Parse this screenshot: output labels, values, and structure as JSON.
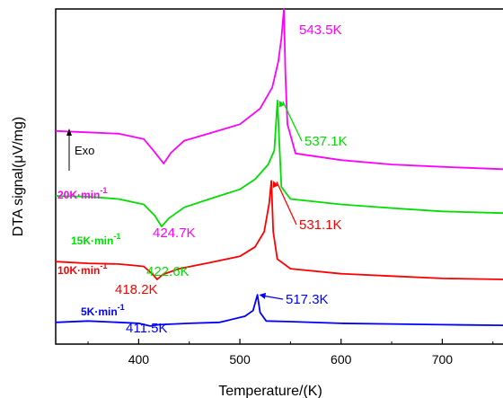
{
  "chart_data": {
    "type": "line",
    "title": "",
    "xlabel": "Temperature/(K)",
    "ylabel": "DTA signal(μV/mg)",
    "xlim": [
      318,
      760
    ],
    "ylim": [
      0,
      100
    ],
    "x_ticks": [
      400,
      500,
      600,
      700
    ],
    "x_tick_labels": [
      "400",
      "500",
      "600",
      "700"
    ],
    "y_ticks_labeled": false,
    "grid": false,
    "legend": "none (inline curve labels)",
    "exo_label": "Exo",
    "series": [
      {
        "name": "20K·min-1",
        "rate_text": "20K·min",
        "rate_exp": "-1",
        "color": "#ff00ff",
        "points": [
          [
            318,
            63.6
          ],
          [
            350,
            63.2
          ],
          [
            380,
            62.8
          ],
          [
            405,
            61.2
          ],
          [
            415,
            57.6
          ],
          [
            424.7,
            53.9
          ],
          [
            432,
            57.1
          ],
          [
            445,
            60.7
          ],
          [
            470,
            62.9
          ],
          [
            500,
            65.6
          ],
          [
            520,
            70.3
          ],
          [
            532,
            76.6
          ],
          [
            538,
            84.4
          ],
          [
            541,
            91.3
          ],
          [
            543.5,
            100.0
          ],
          [
            545,
            80.0
          ],
          [
            547,
            65.6
          ],
          [
            555,
            56.9
          ],
          [
            600,
            54.9
          ],
          [
            650,
            53.6
          ],
          [
            700,
            52.9
          ],
          [
            760,
            52.2
          ]
        ]
      },
      {
        "name": "15K·min-1",
        "rate_text": "15K·min",
        "rate_exp": "-1",
        "color": "#00dd00",
        "points": [
          [
            318,
            44.2
          ],
          [
            350,
            44.0
          ],
          [
            380,
            43.3
          ],
          [
            405,
            41.7
          ],
          [
            416,
            38.3
          ],
          [
            422.6,
            35.1
          ],
          [
            430,
            37.6
          ],
          [
            445,
            40.8
          ],
          [
            470,
            43.3
          ],
          [
            500,
            46.2
          ],
          [
            515,
            49.2
          ],
          [
            528,
            53.6
          ],
          [
            534,
            57.8
          ],
          [
            537.1,
            72.7
          ],
          [
            539,
            60.0
          ],
          [
            541,
            46.9
          ],
          [
            550,
            43.3
          ],
          [
            600,
            41.7
          ],
          [
            650,
            40.6
          ],
          [
            700,
            39.6
          ],
          [
            760,
            39.1
          ]
        ]
      },
      {
        "name": "10K·min-1",
        "rate_text": "10K·min",
        "rate_exp": "-1",
        "color": "#ff0000",
        "points": [
          [
            318,
            24.6
          ],
          [
            350,
            24.1
          ],
          [
            380,
            23.9
          ],
          [
            405,
            23.2
          ],
          [
            414,
            20.8
          ],
          [
            418.2,
            19.3
          ],
          [
            424,
            20.8
          ],
          [
            440,
            22.5
          ],
          [
            470,
            24.3
          ],
          [
            500,
            26.2
          ],
          [
            515,
            29.0
          ],
          [
            524,
            33.5
          ],
          [
            529,
            42.0
          ],
          [
            531.1,
            48.7
          ],
          [
            533,
            33.5
          ],
          [
            537,
            25.4
          ],
          [
            550,
            22.5
          ],
          [
            600,
            21.0
          ],
          [
            650,
            20.3
          ],
          [
            700,
            19.6
          ],
          [
            760,
            19.3
          ]
        ]
      },
      {
        "name": "5K·min-1",
        "rate_text": "5K·min",
        "rate_exp": "-1",
        "color": "#0000ff",
        "points": [
          [
            318,
            6.5
          ],
          [
            350,
            6.9
          ],
          [
            380,
            6.5
          ],
          [
            400,
            6.2
          ],
          [
            411.5,
            5.4
          ],
          [
            420,
            5.8
          ],
          [
            450,
            6.2
          ],
          [
            480,
            6.5
          ],
          [
            505,
            8.3
          ],
          [
            513,
            10.0
          ],
          [
            517.3,
            14.7
          ],
          [
            520,
            9.4
          ],
          [
            526,
            6.9
          ],
          [
            550,
            6.7
          ],
          [
            600,
            6.2
          ],
          [
            650,
            6.0
          ],
          [
            700,
            5.8
          ],
          [
            760,
            5.6
          ]
        ]
      }
    ],
    "annotations": [
      {
        "text": "543.5K",
        "color": "#ff00ff",
        "kind": "plain",
        "x": 543.5,
        "y": 100.0
      },
      {
        "text": "537.1K",
        "color": "#00dd00",
        "kind": "arrow",
        "x": 537.1,
        "y": 72.7
      },
      {
        "text": "531.1K",
        "color": "#ff0000",
        "kind": "arrow",
        "x": 531.1,
        "y": 48.7
      },
      {
        "text": "517.3K",
        "color": "#0000ff",
        "kind": "arrow",
        "x": 517.3,
        "y": 14.7
      },
      {
        "text": "424.7K",
        "color": "#ff00ff",
        "kind": "plain",
        "x": 424.7,
        "y": 53.9
      },
      {
        "text": "422.6K",
        "color": "#00dd00",
        "kind": "plain",
        "x": 422.6,
        "y": 35.1
      },
      {
        "text": "418.2K",
        "color": "#ff0000",
        "kind": "plain",
        "x": 418.2,
        "y": 19.3
      },
      {
        "text": "411.5K",
        "color": "#0000ff",
        "kind": "plain",
        "x": 411.5,
        "y": 5.4
      }
    ]
  }
}
